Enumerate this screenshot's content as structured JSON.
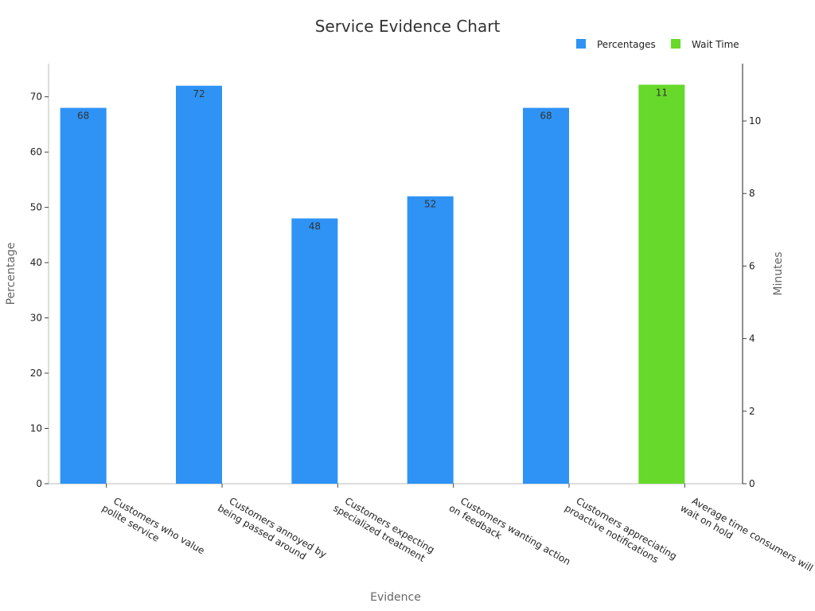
{
  "chart_data": {
    "type": "bar",
    "title": "Service Evidence Chart",
    "xlabel": "Evidence",
    "ylabel": "Percentage",
    "y2label": "Minutes",
    "ylim": [
      0,
      76
    ],
    "y2lim": [
      0,
      11.58
    ],
    "yticks": [
      0,
      10,
      20,
      30,
      40,
      50,
      60,
      70
    ],
    "y2ticks": [
      0,
      2,
      4,
      6,
      8,
      10
    ],
    "categories": [
      [
        "Customers who value",
        "polite service"
      ],
      [
        "Customers annoyed by",
        "being passed around"
      ],
      [
        "Customers expecting",
        "specialized treatment"
      ],
      [
        "Customers wanting action",
        "on feedback"
      ],
      [
        "Customers appreciating",
        "proactive notifications"
      ],
      [
        "Average time consumers will",
        "wait on hold"
      ]
    ],
    "series": [
      {
        "name": "Percentages",
        "axis": "left",
        "color": "#2E93F5",
        "values": [
          68,
          72,
          48,
          52,
          68,
          null
        ]
      },
      {
        "name": "Wait Time",
        "axis": "right",
        "color": "#66D92A",
        "values": [
          null,
          null,
          null,
          null,
          null,
          11
        ]
      }
    ],
    "legend": "top-right",
    "grid": false
  }
}
